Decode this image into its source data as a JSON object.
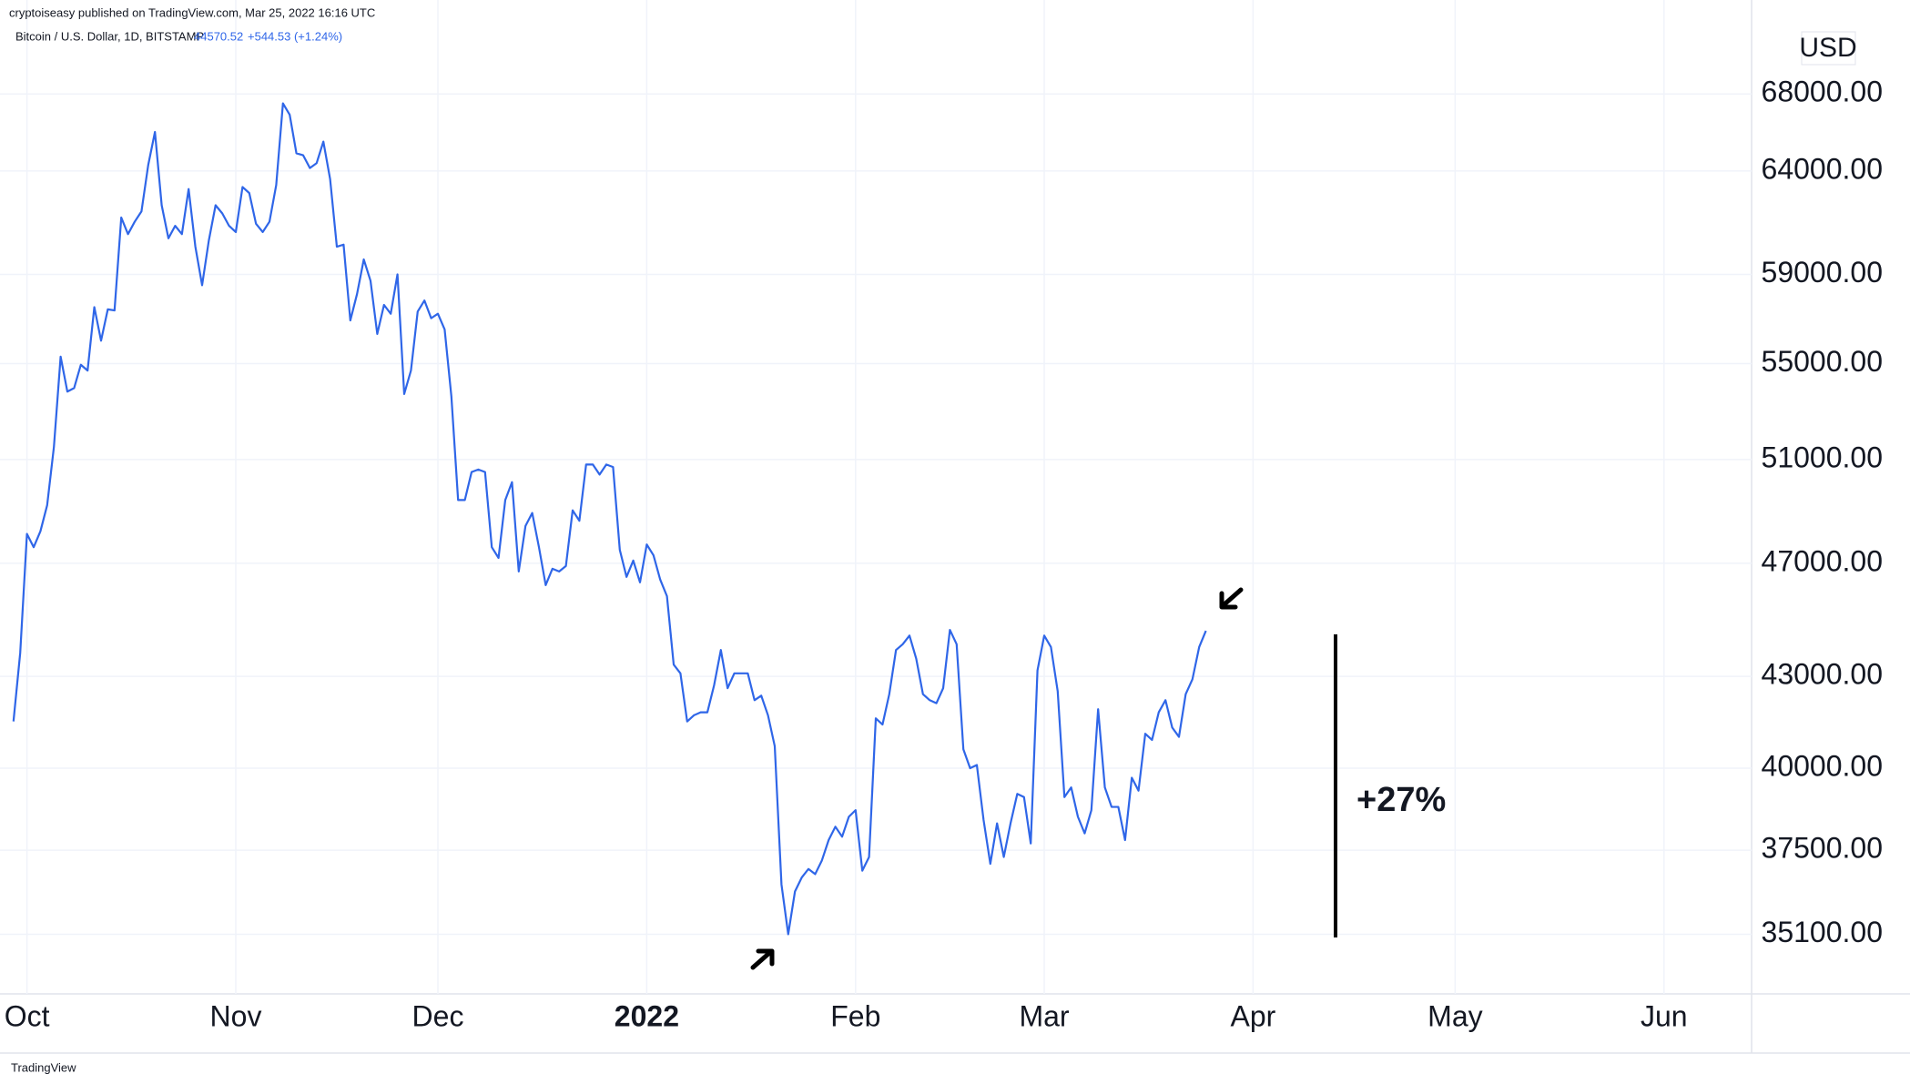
{
  "chart_data": {
    "type": "line",
    "title": "cryptoiseasy published on TradingView.com, Mar 25, 2022 16:16 UTC",
    "subtitle": "Bitcoin / U.S. Dollar, 1D, BITSTAMP",
    "last_price": 44570.52,
    "change": "+544.53 (+1.24%)",
    "currency": "USD",
    "annotation": "+27%",
    "footer": "TradingView",
    "color": "#2f66e8",
    "log_scale": true,
    "grid": true,
    "xlim": [
      -4,
      256
    ],
    "xticks": [
      {
        "value": 0,
        "label": "Oct"
      },
      {
        "value": 31,
        "label": "Nov"
      },
      {
        "value": 61,
        "label": "Dec"
      },
      {
        "value": 92,
        "label": "2022"
      },
      {
        "value": 123,
        "label": "Feb"
      },
      {
        "value": 151,
        "label": "Mar"
      },
      {
        "value": 182,
        "label": "Apr"
      },
      {
        "value": 212,
        "label": "May"
      },
      {
        "value": 243,
        "label": "Jun"
      }
    ],
    "ylim": [
      33490,
      71820
    ],
    "yticks": [
      {
        "value": 35100,
        "label": "35100.00"
      },
      {
        "value": 37500,
        "label": "37500.00"
      },
      {
        "value": 40000,
        "label": "40000.00"
      },
      {
        "value": 43000,
        "label": "43000.00"
      },
      {
        "value": 47000,
        "label": "47000.00"
      },
      {
        "value": 51000,
        "label": "51000.00"
      },
      {
        "value": 55000,
        "label": "55000.00"
      },
      {
        "value": 59000,
        "label": "59000.00"
      },
      {
        "value": 64000,
        "label": "64000.00"
      },
      {
        "value": 68000,
        "label": "68000.00"
      }
    ],
    "x": [
      -2,
      -1,
      0,
      1,
      2,
      3,
      4,
      5,
      6,
      7,
      8,
      9,
      10,
      11,
      12,
      13,
      14,
      15,
      16,
      17,
      18,
      19,
      20,
      21,
      22,
      23,
      24,
      25,
      26,
      27,
      28,
      29,
      30,
      31,
      32,
      33,
      34,
      35,
      36,
      37,
      38,
      39,
      40,
      41,
      42,
      43,
      44,
      45,
      46,
      47,
      48,
      49,
      50,
      51,
      52,
      53,
      54,
      55,
      56,
      57,
      58,
      59,
      60,
      61,
      62,
      63,
      64,
      65,
      66,
      67,
      68,
      69,
      70,
      71,
      72,
      73,
      74,
      75,
      76,
      77,
      78,
      79,
      80,
      81,
      82,
      83,
      84,
      85,
      86,
      87,
      88,
      89,
      90,
      91,
      92,
      93,
      94,
      95,
      96,
      97,
      98,
      99,
      100,
      101,
      102,
      103,
      104,
      105,
      106,
      107,
      108,
      109,
      110,
      111,
      112,
      113,
      114,
      115,
      116,
      117,
      118,
      119,
      120,
      121,
      122,
      123,
      124,
      125,
      126,
      127,
      128,
      129,
      130,
      131,
      132,
      133,
      134,
      135,
      136,
      137,
      138,
      139,
      140,
      141,
      142,
      143,
      144,
      145,
      146,
      147,
      148,
      149,
      150,
      151,
      152,
      153,
      154,
      155,
      156,
      157,
      158,
      159,
      160,
      161,
      162,
      163,
      164,
      165,
      166,
      167,
      168,
      169,
      170,
      171,
      172,
      173,
      174,
      175
    ],
    "values": [
      41500,
      43800,
      48100,
      47600,
      48200,
      49200,
      51500,
      55300,
      53800,
      53950,
      54950,
      54700,
      57500,
      56000,
      57400,
      57350,
      61700,
      60900,
      61500,
      62000,
      64300,
      66000,
      62300,
      60700,
      61300,
      60900,
      63100,
      60300,
      58500,
      60600,
      62300,
      61900,
      61300,
      61000,
      63200,
      62900,
      61400,
      61000,
      61500,
      63300,
      67500,
      66900,
      64900,
      64800,
      64150,
      64400,
      65500,
      63600,
      60300,
      60400,
      56900,
      58100,
      59700,
      58700,
      56300,
      57600,
      57200,
      59000,
      53700,
      54700,
      57300,
      57800,
      57000,
      57200,
      56500,
      53600,
      49400,
      49400,
      50500,
      50600,
      50500,
      47600,
      47200,
      49400,
      50100,
      46700,
      48400,
      48900,
      47600,
      46200,
      46800,
      46700,
      46900,
      49000,
      48600,
      50800,
      50800,
      50400,
      50800,
      50700,
      47500,
      46500,
      47100,
      46300,
      47700,
      47300,
      46400,
      45800,
      43400,
      43100,
      41500,
      41700,
      41800,
      41800,
      42700,
      43900,
      42600,
      43100,
      43100,
      43100,
      42200,
      42350,
      41700,
      40700,
      36500,
      35100,
      36300,
      36700,
      36950,
      36800,
      37200,
      37800,
      38200,
      37900,
      38500,
      38700,
      36900,
      37300,
      41600,
      41400,
      42400,
      43900,
      44100,
      44400,
      43600,
      42400,
      42200,
      42100,
      42600,
      44600,
      44100,
      40600,
      40000,
      40100,
      38400,
      37100,
      38300,
      37300,
      38300,
      39200,
      39100,
      37700,
      43200,
      44400,
      44000,
      42500,
      39100,
      39400,
      38500,
      38000,
      38700,
      41900,
      39400,
      38800,
      38800,
      37800,
      39700,
      39300,
      41100,
      40900,
      41800,
      42200,
      41300,
      41000,
      42400,
      42900,
      44000,
      44570
    ]
  }
}
